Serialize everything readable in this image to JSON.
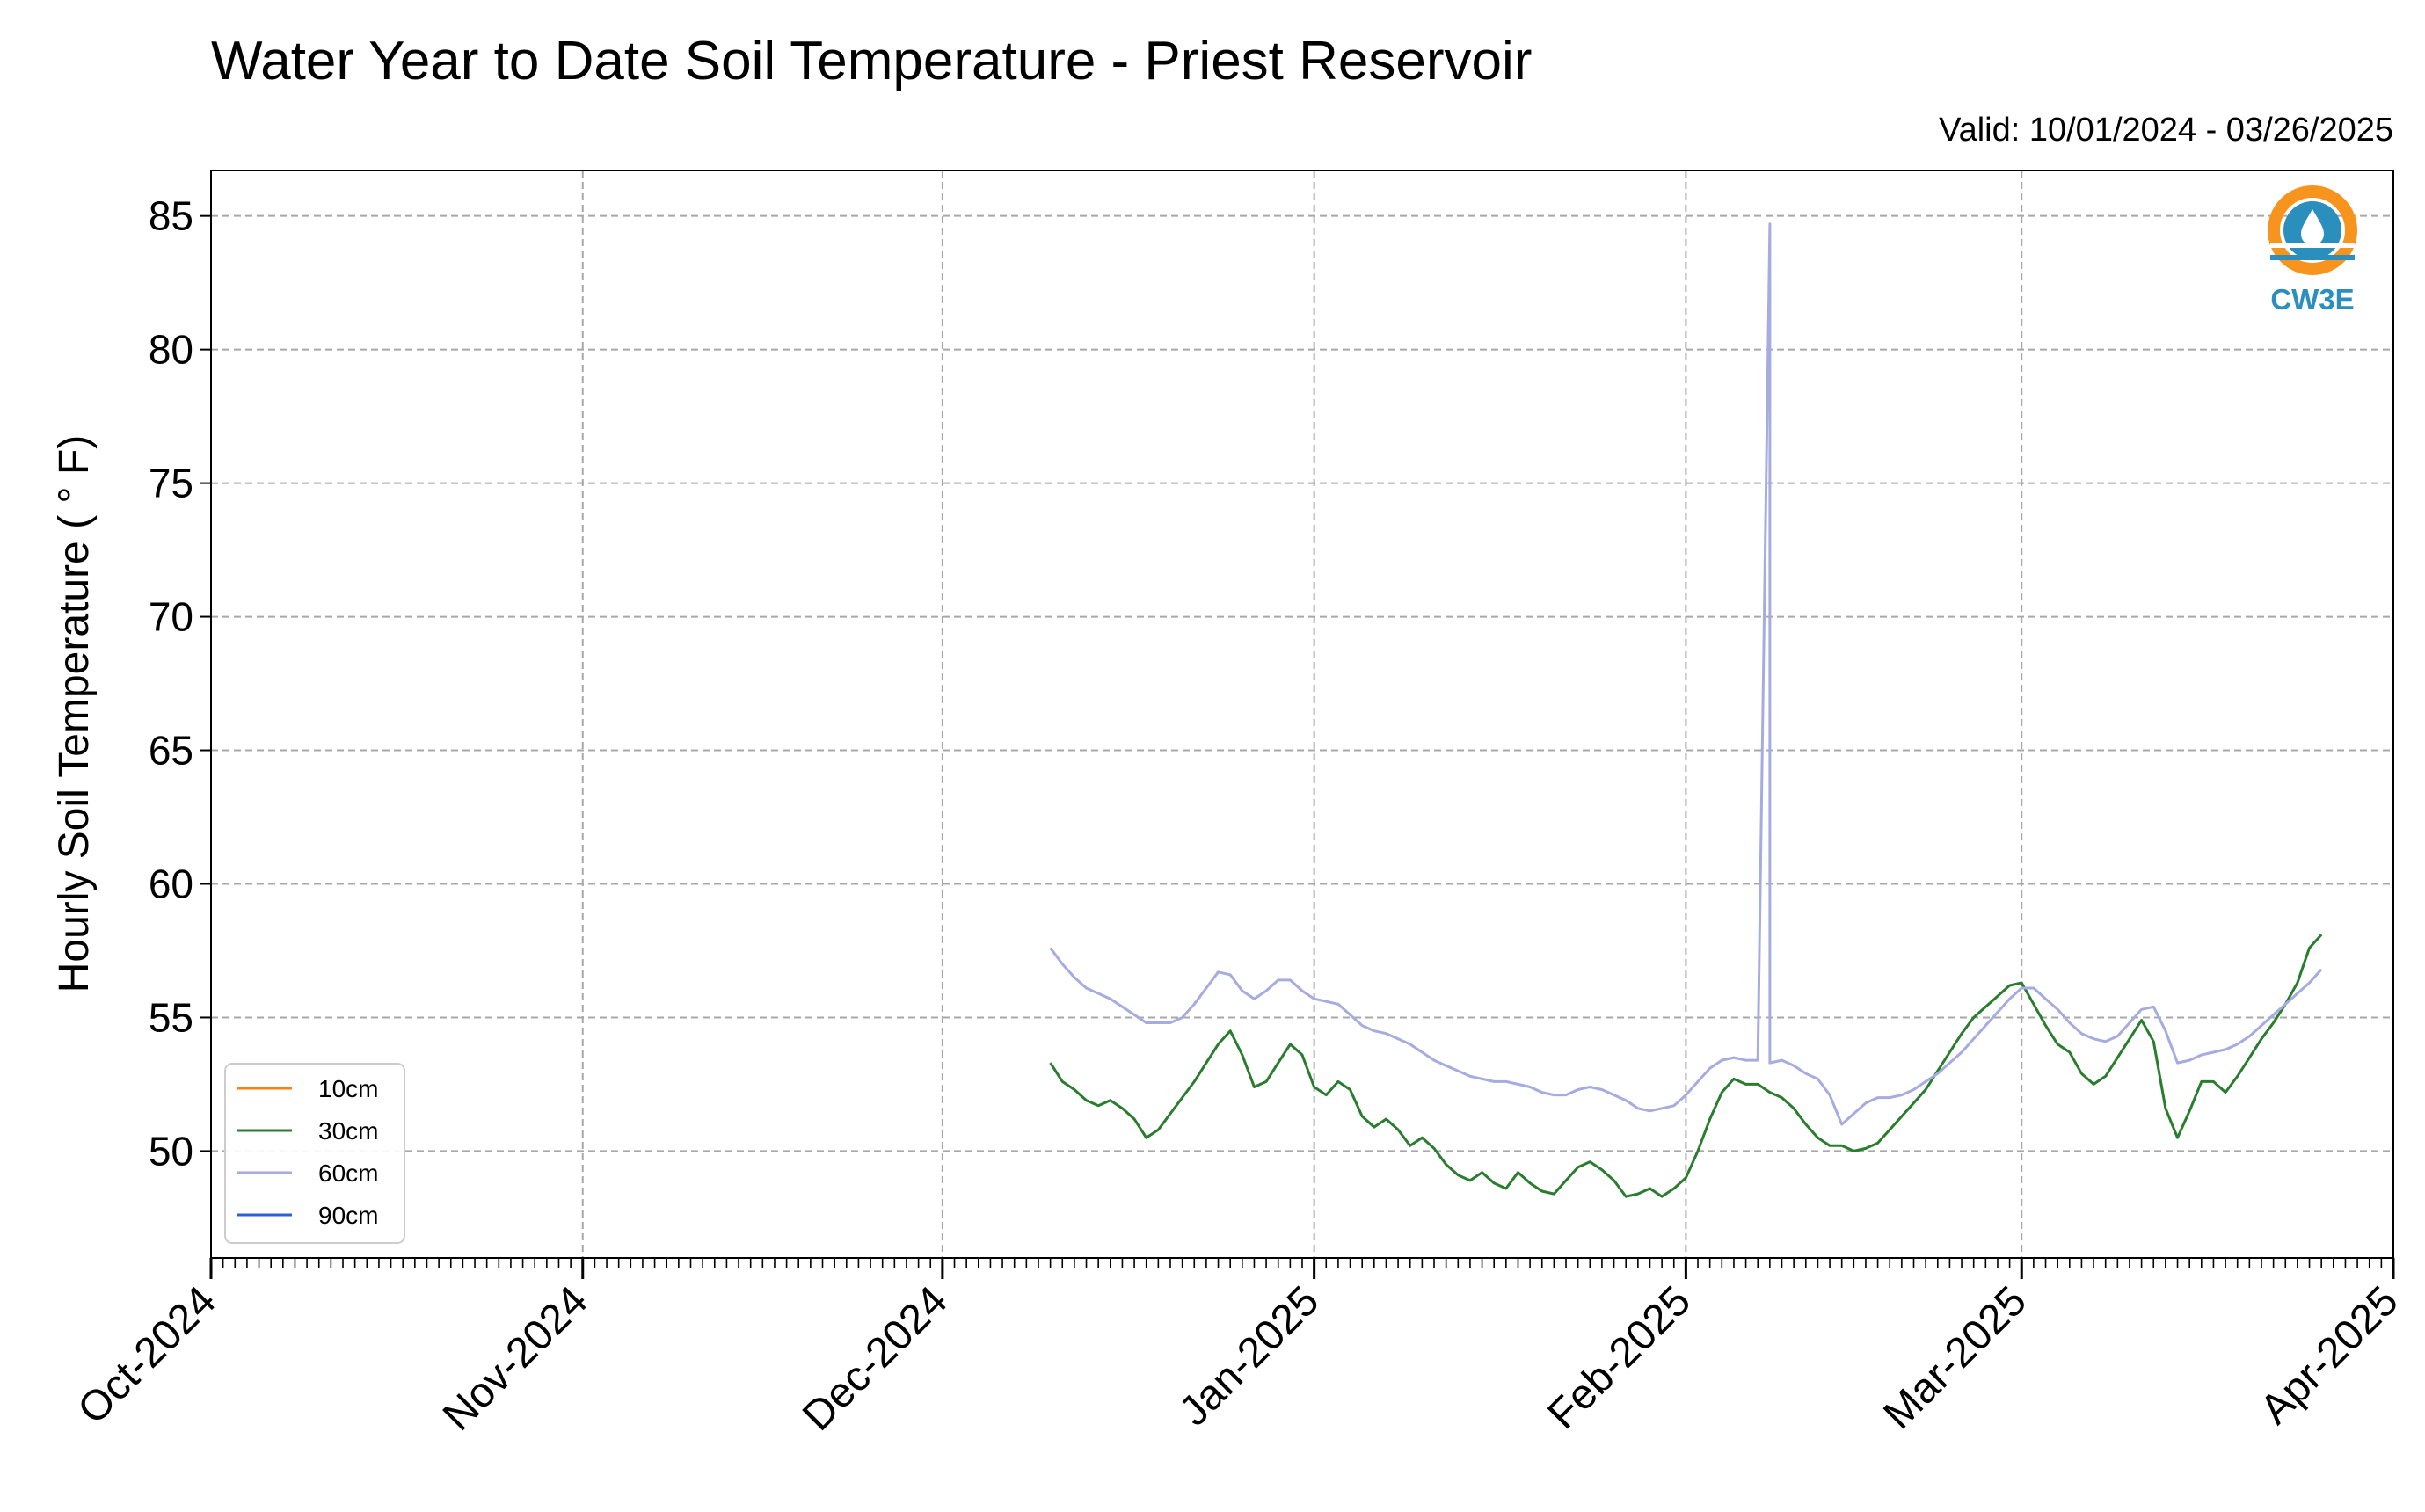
{
  "chart_data": {
    "type": "line",
    "title": "Water Year to Date Soil Temperature - Priest Reservoir",
    "subtitle": "Valid: 10/01/2024 - 03/26/2025",
    "xlabel": "",
    "ylabel": "Hourly Soil Temperature ( ° F)",
    "ylim": [
      46.0,
      86.7
    ],
    "xlim": [
      "2024-10-01",
      "2025-04-01"
    ],
    "yticks": [
      50,
      55,
      60,
      65,
      70,
      75,
      80,
      85
    ],
    "x_tick_labels": [
      {
        "date": "2024-10-01",
        "label": "Oct-2024"
      },
      {
        "date": "2024-11-01",
        "label": "Nov-2024"
      },
      {
        "date": "2024-12-01",
        "label": "Dec-2024"
      },
      {
        "date": "2025-01-01",
        "label": "Jan-2025"
      },
      {
        "date": "2025-02-01",
        "label": "Feb-2025"
      },
      {
        "date": "2025-03-01",
        "label": "Mar-2025"
      },
      {
        "date": "2025-04-01",
        "label": "Apr-2025"
      }
    ],
    "grid": true,
    "legend_position": "lower-left",
    "series": [
      {
        "name": "10cm",
        "color": "#ff7f0e",
        "points": []
      },
      {
        "name": "30cm",
        "color": "#2a7d2e",
        "points": [
          [
            "2024-12-10",
            53.3
          ],
          [
            "2024-12-11",
            52.6
          ],
          [
            "2024-12-12",
            52.3
          ],
          [
            "2024-12-13",
            51.9
          ],
          [
            "2024-12-14",
            51.7
          ],
          [
            "2024-12-15",
            51.9
          ],
          [
            "2024-12-16",
            51.6
          ],
          [
            "2024-12-17",
            51.2
          ],
          [
            "2024-12-18",
            50.5
          ],
          [
            "2024-12-19",
            50.8
          ],
          [
            "2024-12-20",
            51.4
          ],
          [
            "2024-12-21",
            52.0
          ],
          [
            "2024-12-22",
            52.6
          ],
          [
            "2024-12-23",
            53.3
          ],
          [
            "2024-12-24",
            54.0
          ],
          [
            "2024-12-25",
            54.5
          ],
          [
            "2024-12-26",
            53.6
          ],
          [
            "2024-12-27",
            52.4
          ],
          [
            "2024-12-28",
            52.6
          ],
          [
            "2024-12-29",
            53.3
          ],
          [
            "2024-12-30",
            54.0
          ],
          [
            "2024-12-31",
            53.6
          ],
          [
            "2025-01-01",
            52.4
          ],
          [
            "2025-01-02",
            52.1
          ],
          [
            "2025-01-03",
            52.6
          ],
          [
            "2025-01-04",
            52.3
          ],
          [
            "2025-01-05",
            51.3
          ],
          [
            "2025-01-06",
            50.9
          ],
          [
            "2025-01-07",
            51.2
          ],
          [
            "2025-01-08",
            50.8
          ],
          [
            "2025-01-09",
            50.2
          ],
          [
            "2025-01-10",
            50.5
          ],
          [
            "2025-01-11",
            50.1
          ],
          [
            "2025-01-12",
            49.5
          ],
          [
            "2025-01-13",
            49.1
          ],
          [
            "2025-01-14",
            48.9
          ],
          [
            "2025-01-15",
            49.2
          ],
          [
            "2025-01-16",
            48.8
          ],
          [
            "2025-01-17",
            48.6
          ],
          [
            "2025-01-18",
            49.2
          ],
          [
            "2025-01-19",
            48.8
          ],
          [
            "2025-01-20",
            48.5
          ],
          [
            "2025-01-21",
            48.4
          ],
          [
            "2025-01-22",
            48.9
          ],
          [
            "2025-01-23",
            49.4
          ],
          [
            "2025-01-24",
            49.6
          ],
          [
            "2025-01-25",
            49.3
          ],
          [
            "2025-01-26",
            48.9
          ],
          [
            "2025-01-27",
            48.3
          ],
          [
            "2025-01-28",
            48.4
          ],
          [
            "2025-01-29",
            48.6
          ],
          [
            "2025-01-30",
            48.3
          ],
          [
            "2025-01-31",
            48.6
          ],
          [
            "2025-02-01",
            49.0
          ],
          [
            "2025-02-02",
            50.0
          ],
          [
            "2025-02-03",
            51.2
          ],
          [
            "2025-02-04",
            52.2
          ],
          [
            "2025-02-05",
            52.7
          ],
          [
            "2025-02-06",
            52.5
          ],
          [
            "2025-02-07",
            52.5
          ],
          [
            "2025-02-08",
            52.2
          ],
          [
            "2025-02-09",
            52.0
          ],
          [
            "2025-02-10",
            51.6
          ],
          [
            "2025-02-11",
            51.0
          ],
          [
            "2025-02-12",
            50.5
          ],
          [
            "2025-02-13",
            50.2
          ],
          [
            "2025-02-14",
            50.2
          ],
          [
            "2025-02-15",
            50.0
          ],
          [
            "2025-02-16",
            50.1
          ],
          [
            "2025-02-17",
            50.3
          ],
          [
            "2025-02-18",
            50.8
          ],
          [
            "2025-02-19",
            51.3
          ],
          [
            "2025-02-20",
            51.8
          ],
          [
            "2025-02-21",
            52.3
          ],
          [
            "2025-02-22",
            53.0
          ],
          [
            "2025-02-23",
            53.7
          ],
          [
            "2025-02-24",
            54.4
          ],
          [
            "2025-02-25",
            55.0
          ],
          [
            "2025-02-26",
            55.4
          ],
          [
            "2025-02-27",
            55.8
          ],
          [
            "2025-02-28",
            56.2
          ],
          [
            "2025-03-01",
            56.3
          ],
          [
            "2025-03-02",
            55.5
          ],
          [
            "2025-03-03",
            54.7
          ],
          [
            "2025-03-04",
            54.0
          ],
          [
            "2025-03-05",
            53.7
          ],
          [
            "2025-03-06",
            52.9
          ],
          [
            "2025-03-07",
            52.5
          ],
          [
            "2025-03-08",
            52.8
          ],
          [
            "2025-03-09",
            53.5
          ],
          [
            "2025-03-10",
            54.2
          ],
          [
            "2025-03-11",
            54.9
          ],
          [
            "2025-03-12",
            54.1
          ],
          [
            "2025-03-13",
            51.6
          ],
          [
            "2025-03-14",
            50.5
          ],
          [
            "2025-03-15",
            51.5
          ],
          [
            "2025-03-16",
            52.6
          ],
          [
            "2025-03-17",
            52.6
          ],
          [
            "2025-03-18",
            52.2
          ],
          [
            "2025-03-19",
            52.8
          ],
          [
            "2025-03-20",
            53.5
          ],
          [
            "2025-03-21",
            54.2
          ],
          [
            "2025-03-22",
            54.8
          ],
          [
            "2025-03-23",
            55.5
          ],
          [
            "2025-03-24",
            56.3
          ],
          [
            "2025-03-25",
            57.6
          ],
          [
            "2025-03-26",
            58.1
          ]
        ]
      },
      {
        "name": "60cm",
        "color": "#a6abe0",
        "points": [
          [
            "2024-12-10",
            57.6
          ],
          [
            "2024-12-11",
            57.0
          ],
          [
            "2024-12-12",
            56.5
          ],
          [
            "2024-12-13",
            56.1
          ],
          [
            "2024-12-14",
            55.9
          ],
          [
            "2024-12-15",
            55.7
          ],
          [
            "2024-12-16",
            55.4
          ],
          [
            "2024-12-17",
            55.1
          ],
          [
            "2024-12-18",
            54.8
          ],
          [
            "2024-12-19",
            54.8
          ],
          [
            "2024-12-20",
            54.8
          ],
          [
            "2024-12-21",
            55.0
          ],
          [
            "2024-12-22",
            55.5
          ],
          [
            "2024-12-23",
            56.1
          ],
          [
            "2024-12-24",
            56.7
          ],
          [
            "2024-12-25",
            56.6
          ],
          [
            "2024-12-26",
            56.0
          ],
          [
            "2024-12-27",
            55.7
          ],
          [
            "2024-12-28",
            56.0
          ],
          [
            "2024-12-29",
            56.4
          ],
          [
            "2024-12-30",
            56.4
          ],
          [
            "2024-12-31",
            56.0
          ],
          [
            "2025-01-01",
            55.7
          ],
          [
            "2025-01-02",
            55.6
          ],
          [
            "2025-01-03",
            55.5
          ],
          [
            "2025-01-04",
            55.1
          ],
          [
            "2025-01-05",
            54.7
          ],
          [
            "2025-01-06",
            54.5
          ],
          [
            "2025-01-07",
            54.4
          ],
          [
            "2025-01-08",
            54.2
          ],
          [
            "2025-01-09",
            54.0
          ],
          [
            "2025-01-10",
            53.7
          ],
          [
            "2025-01-11",
            53.4
          ],
          [
            "2025-01-12",
            53.2
          ],
          [
            "2025-01-13",
            53.0
          ],
          [
            "2025-01-14",
            52.8
          ],
          [
            "2025-01-15",
            52.7
          ],
          [
            "2025-01-16",
            52.6
          ],
          [
            "2025-01-17",
            52.6
          ],
          [
            "2025-01-18",
            52.5
          ],
          [
            "2025-01-19",
            52.4
          ],
          [
            "2025-01-20",
            52.2
          ],
          [
            "2025-01-21",
            52.1
          ],
          [
            "2025-01-22",
            52.1
          ],
          [
            "2025-01-23",
            52.3
          ],
          [
            "2025-01-24",
            52.4
          ],
          [
            "2025-01-25",
            52.3
          ],
          [
            "2025-01-26",
            52.1
          ],
          [
            "2025-01-27",
            51.9
          ],
          [
            "2025-01-28",
            51.6
          ],
          [
            "2025-01-29",
            51.5
          ],
          [
            "2025-01-30",
            51.6
          ],
          [
            "2025-01-31",
            51.7
          ],
          [
            "2025-02-01",
            52.1
          ],
          [
            "2025-02-02",
            52.6
          ],
          [
            "2025-02-03",
            53.1
          ],
          [
            "2025-02-04",
            53.4
          ],
          [
            "2025-02-05",
            53.5
          ],
          [
            "2025-02-06",
            53.4
          ],
          [
            "2025-02-07",
            53.4
          ],
          [
            "2025-02-08",
            84.7
          ],
          [
            "2025-02-08",
            53.3
          ],
          [
            "2025-02-09",
            53.4
          ],
          [
            "2025-02-10",
            53.2
          ],
          [
            "2025-02-11",
            52.9
          ],
          [
            "2025-02-12",
            52.7
          ],
          [
            "2025-02-13",
            52.1
          ],
          [
            "2025-02-14",
            51.0
          ],
          [
            "2025-02-15",
            51.4
          ],
          [
            "2025-02-16",
            51.8
          ],
          [
            "2025-02-17",
            52.0
          ],
          [
            "2025-02-18",
            52.0
          ],
          [
            "2025-02-19",
            52.1
          ],
          [
            "2025-02-20",
            52.3
          ],
          [
            "2025-02-21",
            52.6
          ],
          [
            "2025-02-22",
            52.9
          ],
          [
            "2025-02-23",
            53.3
          ],
          [
            "2025-02-24",
            53.7
          ],
          [
            "2025-02-25",
            54.2
          ],
          [
            "2025-02-26",
            54.7
          ],
          [
            "2025-02-27",
            55.2
          ],
          [
            "2025-02-28",
            55.7
          ],
          [
            "2025-03-01",
            56.1
          ],
          [
            "2025-03-02",
            56.1
          ],
          [
            "2025-03-03",
            55.7
          ],
          [
            "2025-03-04",
            55.3
          ],
          [
            "2025-03-05",
            54.8
          ],
          [
            "2025-03-06",
            54.4
          ],
          [
            "2025-03-07",
            54.2
          ],
          [
            "2025-03-08",
            54.1
          ],
          [
            "2025-03-09",
            54.3
          ],
          [
            "2025-03-10",
            54.8
          ],
          [
            "2025-03-11",
            55.3
          ],
          [
            "2025-03-12",
            55.4
          ],
          [
            "2025-03-13",
            54.5
          ],
          [
            "2025-03-14",
            53.3
          ],
          [
            "2025-03-15",
            53.4
          ],
          [
            "2025-03-16",
            53.6
          ],
          [
            "2025-03-17",
            53.7
          ],
          [
            "2025-03-18",
            53.8
          ],
          [
            "2025-03-19",
            54.0
          ],
          [
            "2025-03-20",
            54.3
          ],
          [
            "2025-03-21",
            54.7
          ],
          [
            "2025-03-22",
            55.1
          ],
          [
            "2025-03-23",
            55.5
          ],
          [
            "2025-03-24",
            55.9
          ],
          [
            "2025-03-25",
            56.3
          ],
          [
            "2025-03-26",
            56.8
          ]
        ]
      },
      {
        "name": "90cm",
        "color": "#2f5fd6",
        "points": []
      }
    ]
  },
  "logo": {
    "text": "CW3E",
    "ring_color": "#f7941d",
    "blue_color": "#2a8fbd"
  }
}
